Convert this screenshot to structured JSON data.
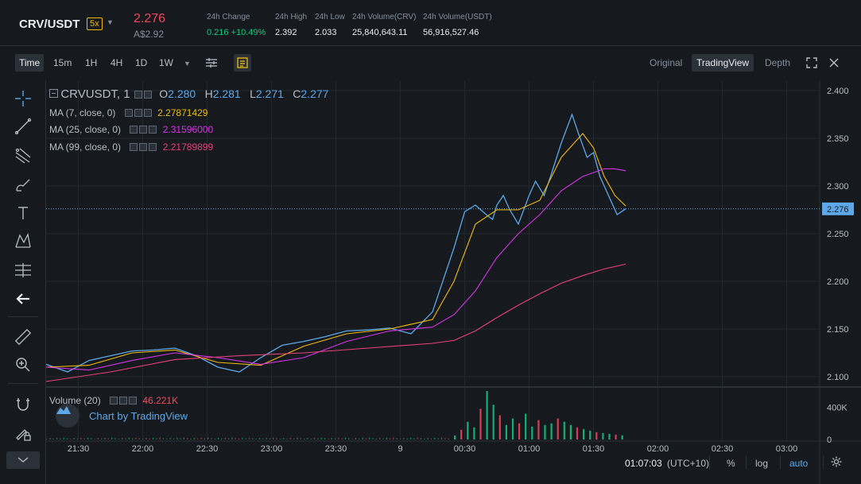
{
  "ticker": {
    "pair": "CRV/USDT",
    "leverage": "5x",
    "price": "2.276",
    "fiat_price": "A$2.92",
    "stats": [
      {
        "label": "24h Change",
        "value": "0.216 +10.49%"
      },
      {
        "label": "24h High",
        "value": "2.392"
      },
      {
        "label": "24h Low",
        "value": "2.033"
      },
      {
        "label": "24h Volume(CRV)",
        "value": "25,840,643.11"
      },
      {
        "label": "24h Volume(USDT)",
        "value": "56,916,527.46"
      }
    ]
  },
  "toolbar": {
    "timeframes": [
      "Time",
      "15m",
      "1H",
      "4H",
      "1D",
      "1W"
    ],
    "active_timeframe": "Time",
    "views": [
      "Original",
      "TradingView",
      "Depth"
    ],
    "active_view": "TradingView"
  },
  "legend": {
    "symbol": "CRVUSDT, 1",
    "ohlc": [
      {
        "k": "O",
        "v": "2.280"
      },
      {
        "k": "H",
        "v": "2.281"
      },
      {
        "k": "L",
        "v": "2.271"
      },
      {
        "k": "C",
        "v": "2.277"
      }
    ],
    "ma": [
      {
        "label": "MA (7, close, 0)",
        "value": "2.27871429",
        "color": "#f0b90b"
      },
      {
        "label": "MA (25, close, 0)",
        "value": "2.31596000",
        "color": "#d633e8"
      },
      {
        "label": "MA (99, close, 0)",
        "value": "2.21789899",
        "color": "#e9407a"
      }
    ],
    "volume_label": "Volume (20)",
    "volume_value": "46.221K"
  },
  "badge": "Chart by TradingView",
  "price_axis": [
    "2.400",
    "2.350",
    "2.300",
    "2.250",
    "2.200",
    "2.150",
    "2.100"
  ],
  "current_price_tag": "2.276",
  "volume_axis": [
    "400K",
    "0"
  ],
  "time_axis": [
    "21:30",
    "22:00",
    "22:30",
    "23:00",
    "23:30",
    "9",
    "00:30",
    "01:00",
    "01:30",
    "02:00",
    "02:30",
    "03:00"
  ],
  "footer": {
    "clock": "01:07:03",
    "timezone": "(UTC+10)",
    "percent": "%",
    "log": "log",
    "auto": "auto"
  },
  "colors": {
    "up": "#0ecb81",
    "down": "#f6465d",
    "price_line": "#5ca8e8",
    "accent": "#f0b90b"
  },
  "chart_data": {
    "type": "line",
    "y_range": [
      2.09,
      2.41
    ],
    "x_range_minutes": [
      0,
      360
    ],
    "x_ticks": [
      "21:30",
      "22:00",
      "22:30",
      "23:00",
      "23:30",
      "9",
      "00:30",
      "01:00",
      "01:30",
      "02:00",
      "02:30",
      "03:00"
    ],
    "series": [
      {
        "name": "CRVUSDT, 1",
        "color": "#5ca8e8",
        "x": [
          0,
          10,
          20,
          30,
          40,
          50,
          60,
          70,
          80,
          90,
          100,
          110,
          120,
          130,
          140,
          150,
          160,
          170,
          180,
          190,
          195,
          200,
          205,
          208,
          210,
          213,
          216,
          220,
          225,
          228,
          232,
          235,
          240,
          245,
          248,
          252,
          255,
          258,
          262,
          266,
          270
        ],
        "y": [
          2.113,
          2.105,
          2.117,
          2.122,
          2.127,
          2.128,
          2.13,
          2.122,
          2.11,
          2.105,
          2.12,
          2.133,
          2.137,
          2.142,
          2.148,
          2.149,
          2.151,
          2.145,
          2.168,
          2.235,
          2.273,
          2.28,
          2.27,
          2.265,
          2.28,
          2.29,
          2.275,
          2.26,
          2.29,
          2.305,
          2.29,
          2.31,
          2.345,
          2.375,
          2.355,
          2.33,
          2.335,
          2.31,
          2.29,
          2.27,
          2.276
        ]
      },
      {
        "name": "MA (7, close, 0)",
        "color": "#f0b90b",
        "x": [
          0,
          20,
          40,
          60,
          80,
          100,
          120,
          140,
          160,
          180,
          190,
          200,
          210,
          220,
          230,
          240,
          250,
          255,
          260,
          265,
          270
        ],
        "y": [
          2.11,
          2.112,
          2.125,
          2.128,
          2.115,
          2.112,
          2.132,
          2.145,
          2.15,
          2.16,
          2.2,
          2.26,
          2.275,
          2.275,
          2.285,
          2.33,
          2.355,
          2.34,
          2.31,
          2.29,
          2.279
        ]
      },
      {
        "name": "MA (25, close, 0)",
        "color": "#d633e8",
        "x": [
          0,
          20,
          40,
          60,
          80,
          100,
          120,
          140,
          160,
          180,
          190,
          200,
          210,
          220,
          230,
          240,
          250,
          260,
          265,
          270
        ],
        "y": [
          2.11,
          2.107,
          2.117,
          2.125,
          2.12,
          2.113,
          2.12,
          2.137,
          2.148,
          2.152,
          2.165,
          2.19,
          2.225,
          2.25,
          2.27,
          2.295,
          2.31,
          2.318,
          2.318,
          2.316
        ]
      },
      {
        "name": "MA (99, close, 0)",
        "color": "#e9407a",
        "x": [
          0,
          30,
          60,
          90,
          120,
          150,
          180,
          190,
          200,
          210,
          220,
          230,
          240,
          250,
          260,
          270
        ],
        "y": [
          2.095,
          2.105,
          2.118,
          2.122,
          2.125,
          2.13,
          2.135,
          2.138,
          2.148,
          2.162,
          2.175,
          2.187,
          2.198,
          2.206,
          2.213,
          2.218
        ]
      }
    ],
    "volume": {
      "name": "Volume (20)",
      "y_range": [
        0,
        600000
      ],
      "x": [
        190,
        193,
        196,
        199,
        202,
        205,
        208,
        211,
        214,
        217,
        220,
        223,
        226,
        229,
        232,
        235,
        238,
        241,
        244,
        247,
        250,
        253,
        256,
        259,
        262,
        265,
        268
      ],
      "y": [
        50000,
        120000,
        220000,
        150000,
        380000,
        600000,
        430000,
        300000,
        180000,
        260000,
        200000,
        320000,
        160000,
        240000,
        180000,
        200000,
        260000,
        220000,
        180000,
        150000,
        130000,
        110000,
        90000,
        80000,
        70000,
        60000,
        50000
      ]
    }
  }
}
